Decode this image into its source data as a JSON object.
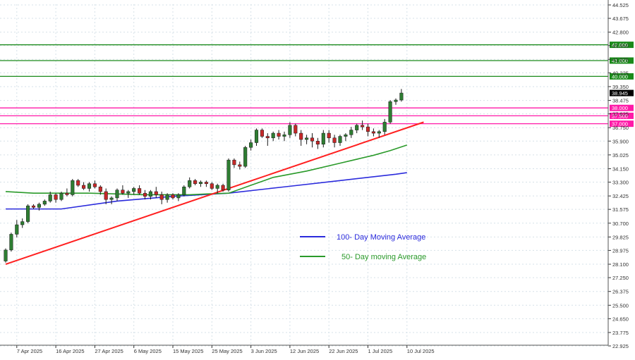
{
  "chart_data": {
    "type": "candlestick",
    "y_axis": {
      "ylim": [
        22.925,
        44.525
      ],
      "ticks": [
        "44.525",
        "43.675",
        "42.800",
        "41.950",
        "41.075",
        "40.225",
        "39.350",
        "38.475",
        "37.625",
        "36.750",
        "35.900",
        "35.025",
        "34.150",
        "33.300",
        "32.425",
        "31.575",
        "30.700",
        "29.825",
        "28.975",
        "28.100",
        "27.250",
        "26.375",
        "25.500",
        "24.650",
        "23.775",
        "22.925"
      ],
      "current_price_label": "38.945",
      "current_price": 38.945
    },
    "x_axis": {
      "labels": [
        {
          "index": 2,
          "text": "7 Apr 2025"
        },
        {
          "index": 9,
          "text": "16 Apr 2025"
        },
        {
          "index": 16,
          "text": "27 Apr 2025"
        },
        {
          "index": 23,
          "text": "6 May 2025"
        },
        {
          "index": 30,
          "text": "15 May 2025"
        },
        {
          "index": 37,
          "text": "25 May 2025"
        },
        {
          "index": 44,
          "text": "3 Jun 2025"
        },
        {
          "index": 51,
          "text": "12 Jun 2025"
        },
        {
          "index": 58,
          "text": "22 Jun 2025"
        },
        {
          "index": 65,
          "text": "1 Jul 2025"
        },
        {
          "index": 72,
          "text": "10 Jul 2025"
        }
      ],
      "bar_count": 75
    },
    "candles": [
      [
        28.3,
        29.1,
        28.2,
        29.0
      ],
      [
        29.0,
        30.1,
        28.9,
        30.0
      ],
      [
        30.0,
        30.9,
        29.8,
        30.6
      ],
      [
        30.6,
        31.0,
        30.4,
        30.8
      ],
      [
        30.8,
        31.9,
        30.7,
        31.8
      ],
      [
        31.8,
        31.9,
        31.6,
        31.7
      ],
      [
        31.7,
        32.0,
        31.5,
        31.9
      ],
      [
        31.9,
        32.2,
        31.8,
        32.1
      ],
      [
        32.1,
        32.7,
        32.0,
        32.5
      ],
      [
        32.5,
        32.6,
        32.0,
        32.2
      ],
      [
        32.2,
        32.7,
        32.1,
        32.6
      ],
      [
        32.6,
        32.9,
        32.4,
        32.5
      ],
      [
        32.5,
        33.5,
        32.4,
        33.4
      ],
      [
        33.4,
        33.5,
        33.0,
        33.1
      ],
      [
        33.1,
        33.3,
        32.8,
        32.9
      ],
      [
        32.9,
        33.3,
        32.7,
        33.2
      ],
      [
        33.2,
        33.4,
        32.9,
        33.0
      ],
      [
        33.0,
        33.1,
        32.5,
        32.7
      ],
      [
        32.7,
        32.9,
        31.9,
        32.2
      ],
      [
        32.2,
        32.4,
        31.9,
        32.3
      ],
      [
        32.3,
        32.9,
        32.1,
        32.8
      ],
      [
        32.8,
        33.1,
        32.5,
        32.6
      ],
      [
        32.6,
        32.8,
        32.3,
        32.7
      ],
      [
        32.7,
        33.0,
        32.5,
        32.9
      ],
      [
        32.9,
        33.1,
        32.5,
        32.6
      ],
      [
        32.6,
        32.8,
        32.2,
        32.4
      ],
      [
        32.4,
        32.8,
        32.2,
        32.7
      ],
      [
        32.7,
        33.0,
        32.3,
        32.5
      ],
      [
        32.5,
        32.7,
        31.9,
        32.2
      ],
      [
        32.2,
        32.6,
        32.0,
        32.5
      ],
      [
        32.5,
        32.6,
        32.2,
        32.3
      ],
      [
        32.3,
        32.6,
        32.1,
        32.5
      ],
      [
        32.5,
        33.1,
        32.4,
        33.0
      ],
      [
        33.0,
        33.6,
        32.9,
        33.4
      ],
      [
        33.4,
        33.5,
        33.1,
        33.2
      ],
      [
        33.2,
        33.4,
        33.0,
        33.3
      ],
      [
        33.3,
        33.4,
        33.0,
        33.2
      ],
      [
        33.2,
        33.3,
        32.8,
        32.9
      ],
      [
        32.9,
        33.2,
        32.6,
        33.1
      ],
      [
        33.1,
        33.2,
        32.7,
        32.8
      ],
      [
        32.8,
        34.8,
        32.7,
        34.7
      ],
      [
        34.7,
        34.8,
        34.2,
        34.4
      ],
      [
        34.4,
        34.6,
        34.1,
        34.3
      ],
      [
        34.3,
        35.6,
        34.2,
        35.5
      ],
      [
        35.5,
        36.0,
        35.3,
        35.8
      ],
      [
        35.8,
        36.7,
        35.6,
        36.6
      ],
      [
        36.6,
        36.7,
        36.1,
        36.2
      ],
      [
        36.2,
        36.4,
        35.6,
        36.1
      ],
      [
        36.1,
        36.5,
        35.9,
        36.4
      ],
      [
        36.4,
        36.6,
        36.0,
        36.2
      ],
      [
        36.2,
        36.5,
        35.9,
        36.3
      ],
      [
        36.3,
        37.1,
        36.1,
        36.9
      ],
      [
        36.9,
        37.0,
        36.2,
        36.4
      ],
      [
        36.4,
        36.6,
        35.6,
        36.0
      ],
      [
        36.0,
        36.3,
        35.7,
        36.1
      ],
      [
        36.1,
        36.4,
        35.5,
        35.9
      ],
      [
        35.9,
        36.1,
        35.4,
        35.7
      ],
      [
        35.7,
        36.6,
        35.5,
        36.4
      ],
      [
        36.4,
        36.6,
        35.8,
        36.1
      ],
      [
        36.1,
        36.3,
        35.5,
        35.8
      ],
      [
        35.8,
        36.3,
        35.6,
        36.2
      ],
      [
        36.2,
        36.4,
        35.9,
        36.3
      ],
      [
        36.3,
        36.8,
        36.1,
        36.6
      ],
      [
        36.6,
        37.0,
        36.4,
        36.9
      ],
      [
        36.9,
        37.2,
        36.6,
        36.8
      ],
      [
        36.8,
        37.0,
        36.2,
        36.5
      ],
      [
        36.5,
        36.7,
        36.2,
        36.4
      ],
      [
        36.4,
        36.6,
        36.1,
        36.5
      ],
      [
        36.5,
        37.3,
        36.3,
        37.1
      ],
      [
        37.1,
        38.5,
        37.0,
        38.4
      ],
      [
        38.4,
        38.6,
        38.2,
        38.5
      ],
      [
        38.5,
        39.2,
        38.4,
        38.945
      ]
    ],
    "horizontal_lines": [
      {
        "value": 42.0,
        "label": "42.000",
        "color": "#1a8a1a"
      },
      {
        "value": 41.0,
        "label": "41.000",
        "color": "#1a8a1a"
      },
      {
        "value": 40.0,
        "label": "40.000",
        "color": "#1a8a1a"
      },
      {
        "value": 38.0,
        "label": "38.000",
        "color": "#ff1aa8"
      },
      {
        "value": 37.5,
        "label": "37.500",
        "color": "#ff1aa8"
      },
      {
        "value": 37.0,
        "label": "37.000",
        "color": "#ff1aa8"
      }
    ],
    "trendline": {
      "from": {
        "index": 0,
        "value": 28.1
      },
      "to": {
        "index": 75,
        "value": 37.1
      },
      "color": "#ff2020"
    },
    "moving_averages": [
      {
        "name": "100- Day Moving Average",
        "color": "#2b2bdc",
        "points": [
          [
            0,
            31.6
          ],
          [
            10,
            31.6
          ],
          [
            20,
            32.1
          ],
          [
            30,
            32.4
          ],
          [
            40,
            32.6
          ],
          [
            50,
            33.0
          ],
          [
            60,
            33.4
          ],
          [
            70,
            33.8
          ],
          [
            72,
            33.9
          ]
        ]
      },
      {
        "name": "50- Day moving Average",
        "color": "#2a9a2a",
        "points": [
          [
            0,
            32.7
          ],
          [
            5,
            32.6
          ],
          [
            15,
            32.6
          ],
          [
            25,
            32.5
          ],
          [
            33,
            32.5
          ],
          [
            36,
            32.55
          ],
          [
            40,
            32.6
          ],
          [
            44,
            33.1
          ],
          [
            48,
            33.6
          ],
          [
            54,
            34.0
          ],
          [
            60,
            34.5
          ],
          [
            66,
            35.0
          ],
          [
            69,
            35.3
          ],
          [
            72,
            35.65
          ]
        ]
      }
    ],
    "legend": {
      "placement": "center-right"
    },
    "colors": {
      "up": "#2e7d32",
      "down": "#c62828",
      "grid": "#d6e1e8",
      "axis_text": "#333333"
    },
    "grid": true
  }
}
